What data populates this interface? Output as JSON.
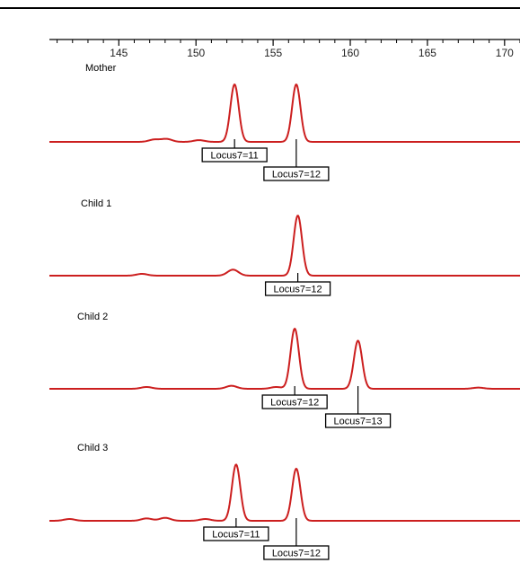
{
  "chart_data": {
    "type": "line",
    "x_ticks": [
      145,
      150,
      155,
      160,
      165,
      170
    ],
    "xlim": [
      140.5,
      171
    ],
    "colors": {
      "trace": "#cc1f1f"
    },
    "panels": [
      {
        "label": "Mother",
        "peaks": [
          {
            "x": 152.5,
            "height": 1.0
          },
          {
            "x": 156.5,
            "height": 1.0
          }
        ],
        "minor_peaks": [
          {
            "x": 147.3,
            "height": 0.04
          },
          {
            "x": 148.1,
            "height": 0.05
          },
          {
            "x": 150.2,
            "height": 0.03
          }
        ],
        "alleles": [
          {
            "x": 152.5,
            "label": "Locus7=11",
            "level": 0
          },
          {
            "x": 156.5,
            "label": "Locus7=12",
            "level": 1
          }
        ]
      },
      {
        "label": "Child 1",
        "peaks": [
          {
            "x": 156.6,
            "height": 1.0
          }
        ],
        "minor_peaks": [
          {
            "x": 146.5,
            "height": 0.03
          },
          {
            "x": 152.4,
            "height": 0.1
          }
        ],
        "alleles": [
          {
            "x": 156.6,
            "label": "Locus7=12",
            "level": 0
          }
        ]
      },
      {
        "label": "Child 2",
        "peaks": [
          {
            "x": 156.4,
            "height": 1.0
          },
          {
            "x": 160.5,
            "height": 0.8
          }
        ],
        "minor_peaks": [
          {
            "x": 146.8,
            "height": 0.03
          },
          {
            "x": 152.3,
            "height": 0.05
          },
          {
            "x": 155.2,
            "height": 0.03
          },
          {
            "x": 168.3,
            "height": 0.02
          }
        ],
        "alleles": [
          {
            "x": 156.4,
            "label": "Locus7=12",
            "level": 0
          },
          {
            "x": 160.5,
            "label": "Locus7=13",
            "level": 1
          }
        ]
      },
      {
        "label": "Child 3",
        "peaks": [
          {
            "x": 152.6,
            "height": 0.95
          },
          {
            "x": 156.5,
            "height": 0.88
          }
        ],
        "minor_peaks": [
          {
            "x": 141.8,
            "height": 0.03
          },
          {
            "x": 146.8,
            "height": 0.04
          },
          {
            "x": 148.0,
            "height": 0.05
          },
          {
            "x": 150.6,
            "height": 0.03
          }
        ],
        "alleles": [
          {
            "x": 152.6,
            "label": "Locus7=11",
            "level": 0
          },
          {
            "x": 156.5,
            "label": "Locus7=12",
            "level": 1
          }
        ]
      }
    ]
  }
}
